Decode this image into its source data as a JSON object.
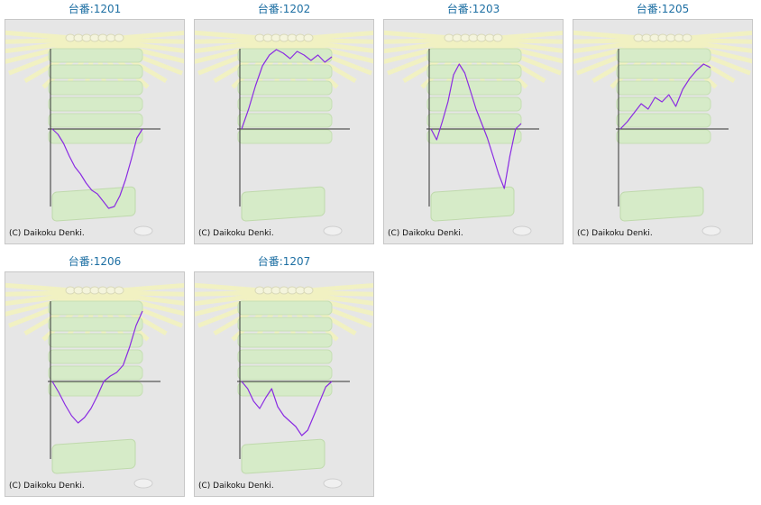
{
  "tiles": [
    {
      "title": "台番:1201"
    },
    {
      "title": "台番:1202"
    },
    {
      "title": "台番:1203"
    },
    {
      "title": "台番:1205"
    },
    {
      "title": "台番:1206"
    },
    {
      "title": "台番:1207"
    }
  ],
  "copyright": "(C) Daikoku Denki.",
  "colors": {
    "title": "#1d6fa3",
    "line": "#8a2be2",
    "panel_bg": "#e6e6e6",
    "axis": "#333333"
  },
  "chart_data": [
    {
      "type": "line",
      "title": "台番:1201",
      "values": [
        0,
        -6,
        -16,
        -30,
        -42,
        -50,
        -60,
        -68,
        -72,
        -80,
        -88,
        -86,
        -74,
        -56,
        -34,
        -10,
        0
      ]
    },
    {
      "type": "line",
      "title": "台番:1202",
      "values": [
        0,
        22,
        48,
        70,
        82,
        88,
        84,
        78,
        86,
        82,
        76,
        82,
        74,
        80
      ]
    },
    {
      "type": "line",
      "title": "台番:1203",
      "values": [
        0,
        -12,
        8,
        30,
        60,
        72,
        62,
        42,
        22,
        6,
        -10,
        -30,
        -50,
        -66,
        -30,
        0,
        6
      ]
    },
    {
      "type": "line",
      "title": "台番:1205",
      "values": [
        0,
        8,
        18,
        28,
        22,
        35,
        30,
        38,
        25,
        44,
        56,
        65,
        72,
        68
      ]
    },
    {
      "type": "line",
      "title": "台番:1206",
      "values": [
        0,
        -12,
        -26,
        -38,
        -46,
        -40,
        -30,
        -16,
        0,
        6,
        10,
        18,
        38,
        62,
        78
      ]
    },
    {
      "type": "line",
      "title": "台番:1207",
      "values": [
        0,
        -8,
        -22,
        -30,
        -18,
        -8,
        -28,
        -38,
        -44,
        -50,
        -60,
        -54,
        -38,
        -22,
        -6,
        0
      ]
    }
  ]
}
